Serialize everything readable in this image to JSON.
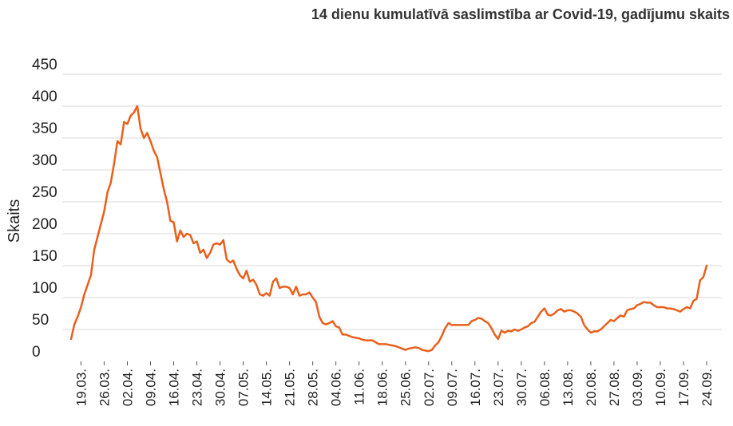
{
  "chart_data": {
    "type": "line",
    "title": "14 dienu kumulatīvā saslimstība ar Covid-19, gadījumu skaits",
    "xlabel": "",
    "ylabel": "Skaits",
    "ylim": [
      0,
      450
    ],
    "yticks": [
      0,
      50,
      100,
      150,
      200,
      250,
      300,
      350,
      400,
      450
    ],
    "grid": true,
    "color": "#e8601c",
    "x_start": "2020-03-16",
    "x_end": "2020-09-24",
    "xticks": [
      {
        "date": "2020-03-19",
        "label": "19.03."
      },
      {
        "date": "2020-03-26",
        "label": "26.03."
      },
      {
        "date": "2020-04-02",
        "label": "02.04."
      },
      {
        "date": "2020-04-09",
        "label": "09.04."
      },
      {
        "date": "2020-04-16",
        "label": "16.04."
      },
      {
        "date": "2020-04-23",
        "label": "23.04."
      },
      {
        "date": "2020-04-30",
        "label": "30.04."
      },
      {
        "date": "2020-05-07",
        "label": "07.05."
      },
      {
        "date": "2020-05-14",
        "label": "14.05."
      },
      {
        "date": "2020-05-21",
        "label": "21.05."
      },
      {
        "date": "2020-05-28",
        "label": "28.05."
      },
      {
        "date": "2020-06-04",
        "label": "04.06."
      },
      {
        "date": "2020-06-11",
        "label": "11.06."
      },
      {
        "date": "2020-06-18",
        "label": "18.06."
      },
      {
        "date": "2020-06-25",
        "label": "25.06."
      },
      {
        "date": "2020-07-02",
        "label": "02.07."
      },
      {
        "date": "2020-07-09",
        "label": "09.07."
      },
      {
        "date": "2020-07-16",
        "label": "16.07."
      },
      {
        "date": "2020-07-23",
        "label": "23.07."
      },
      {
        "date": "2020-07-30",
        "label": "30.07."
      },
      {
        "date": "2020-08-06",
        "label": "06.08."
      },
      {
        "date": "2020-08-13",
        "label": "13.08."
      },
      {
        "date": "2020-08-20",
        "label": "20.08."
      },
      {
        "date": "2020-08-27",
        "label": "27.08."
      },
      {
        "date": "2020-09-03",
        "label": "03.09."
      },
      {
        "date": "2020-09-10",
        "label": "10.09."
      },
      {
        "date": "2020-09-17",
        "label": "17.09."
      },
      {
        "date": "2020-09-24",
        "label": "24.09."
      }
    ],
    "series": [
      {
        "points": [
          [
            "2020-03-16",
            35
          ],
          [
            "2020-03-17",
            58
          ],
          [
            "2020-03-18",
            70
          ],
          [
            "2020-03-19",
            85
          ],
          [
            "2020-03-20",
            105
          ],
          [
            "2020-03-21",
            120
          ],
          [
            "2020-03-22",
            135
          ],
          [
            "2020-03-23",
            175
          ],
          [
            "2020-03-24",
            195
          ],
          [
            "2020-03-25",
            215
          ],
          [
            "2020-03-26",
            235
          ],
          [
            "2020-03-27",
            265
          ],
          [
            "2020-03-28",
            280
          ],
          [
            "2020-03-29",
            310
          ],
          [
            "2020-03-30",
            345
          ],
          [
            "2020-03-31",
            340
          ],
          [
            "2020-04-01",
            375
          ],
          [
            "2020-04-02",
            372
          ],
          [
            "2020-04-03",
            385
          ],
          [
            "2020-04-04",
            390
          ],
          [
            "2020-04-05",
            400
          ],
          [
            "2020-04-06",
            365
          ],
          [
            "2020-04-07",
            350
          ],
          [
            "2020-04-08",
            358
          ],
          [
            "2020-04-09",
            345
          ],
          [
            "2020-04-10",
            330
          ],
          [
            "2020-04-11",
            320
          ],
          [
            "2020-04-12",
            295
          ],
          [
            "2020-04-13",
            270
          ],
          [
            "2020-04-14",
            250
          ],
          [
            "2020-04-15",
            220
          ],
          [
            "2020-04-16",
            218
          ],
          [
            "2020-04-17",
            188
          ],
          [
            "2020-04-18",
            205
          ],
          [
            "2020-04-19",
            195
          ],
          [
            "2020-04-20",
            200
          ],
          [
            "2020-04-21",
            198
          ],
          [
            "2020-04-22",
            185
          ],
          [
            "2020-04-23",
            188
          ],
          [
            "2020-04-24",
            170
          ],
          [
            "2020-04-25",
            175
          ],
          [
            "2020-04-26",
            162
          ],
          [
            "2020-04-27",
            170
          ],
          [
            "2020-04-28",
            183
          ],
          [
            "2020-04-29",
            185
          ],
          [
            "2020-04-30",
            183
          ],
          [
            "2020-05-01",
            190
          ],
          [
            "2020-05-02",
            160
          ],
          [
            "2020-05-03",
            155
          ],
          [
            "2020-05-04",
            158
          ],
          [
            "2020-05-05",
            145
          ],
          [
            "2020-05-06",
            135
          ],
          [
            "2020-05-07",
            130
          ],
          [
            "2020-05-08",
            142
          ],
          [
            "2020-05-09",
            125
          ],
          [
            "2020-05-10",
            128
          ],
          [
            "2020-05-11",
            120
          ],
          [
            "2020-05-12",
            105
          ],
          [
            "2020-05-13",
            103
          ],
          [
            "2020-05-14",
            107
          ],
          [
            "2020-05-15",
            103
          ],
          [
            "2020-05-16",
            125
          ],
          [
            "2020-05-17",
            130
          ],
          [
            "2020-05-18",
            115
          ],
          [
            "2020-05-19",
            117
          ],
          [
            "2020-05-20",
            117
          ],
          [
            "2020-05-21",
            115
          ],
          [
            "2020-05-22",
            105
          ],
          [
            "2020-05-23",
            117
          ],
          [
            "2020-05-24",
            103
          ],
          [
            "2020-05-25",
            105
          ],
          [
            "2020-05-26",
            105
          ],
          [
            "2020-05-27",
            108
          ],
          [
            "2020-05-28",
            100
          ],
          [
            "2020-05-29",
            93
          ],
          [
            "2020-05-30",
            70
          ],
          [
            "2020-05-31",
            60
          ],
          [
            "2020-06-01",
            58
          ],
          [
            "2020-06-02",
            60
          ],
          [
            "2020-06-03",
            63
          ],
          [
            "2020-06-04",
            55
          ],
          [
            "2020-06-05",
            53
          ],
          [
            "2020-06-06",
            42
          ],
          [
            "2020-06-07",
            42
          ],
          [
            "2020-06-08",
            40
          ],
          [
            "2020-06-09",
            38
          ],
          [
            "2020-06-10",
            37
          ],
          [
            "2020-06-11",
            36
          ],
          [
            "2020-06-12",
            34
          ],
          [
            "2020-06-13",
            33
          ],
          [
            "2020-06-14",
            33
          ],
          [
            "2020-06-15",
            33
          ],
          [
            "2020-06-16",
            30
          ],
          [
            "2020-06-17",
            27
          ],
          [
            "2020-06-18",
            27
          ],
          [
            "2020-06-19",
            27
          ],
          [
            "2020-06-20",
            26
          ],
          [
            "2020-06-21",
            25
          ],
          [
            "2020-06-22",
            24
          ],
          [
            "2020-06-23",
            22
          ],
          [
            "2020-06-24",
            20
          ],
          [
            "2020-06-25",
            18
          ],
          [
            "2020-06-26",
            20
          ],
          [
            "2020-06-27",
            21
          ],
          [
            "2020-06-28",
            22
          ],
          [
            "2020-06-29",
            21
          ],
          [
            "2020-06-30",
            18
          ],
          [
            "2020-07-01",
            17
          ],
          [
            "2020-07-02",
            16
          ],
          [
            "2020-07-03",
            18
          ],
          [
            "2020-07-04",
            25
          ],
          [
            "2020-07-05",
            30
          ],
          [
            "2020-07-06",
            40
          ],
          [
            "2020-07-07",
            52
          ],
          [
            "2020-07-08",
            60
          ],
          [
            "2020-07-09",
            57
          ],
          [
            "2020-07-10",
            57
          ],
          [
            "2020-07-11",
            57
          ],
          [
            "2020-07-12",
            57
          ],
          [
            "2020-07-13",
            57
          ],
          [
            "2020-07-14",
            57
          ],
          [
            "2020-07-15",
            63
          ],
          [
            "2020-07-16",
            65
          ],
          [
            "2020-07-17",
            68
          ],
          [
            "2020-07-18",
            67
          ],
          [
            "2020-07-19",
            63
          ],
          [
            "2020-07-20",
            60
          ],
          [
            "2020-07-21",
            52
          ],
          [
            "2020-07-22",
            42
          ],
          [
            "2020-07-23",
            35
          ],
          [
            "2020-07-24",
            48
          ],
          [
            "2020-07-25",
            45
          ],
          [
            "2020-07-26",
            48
          ],
          [
            "2020-07-27",
            47
          ],
          [
            "2020-07-28",
            50
          ],
          [
            "2020-07-29",
            48
          ],
          [
            "2020-07-30",
            50
          ],
          [
            "2020-07-31",
            53
          ],
          [
            "2020-08-01",
            55
          ],
          [
            "2020-08-02",
            60
          ],
          [
            "2020-08-03",
            62
          ],
          [
            "2020-08-04",
            70
          ],
          [
            "2020-08-05",
            78
          ],
          [
            "2020-08-06",
            83
          ],
          [
            "2020-08-07",
            73
          ],
          [
            "2020-08-08",
            72
          ],
          [
            "2020-08-09",
            75
          ],
          [
            "2020-08-10",
            80
          ],
          [
            "2020-08-11",
            82
          ],
          [
            "2020-08-12",
            78
          ],
          [
            "2020-08-13",
            80
          ],
          [
            "2020-08-14",
            80
          ],
          [
            "2020-08-15",
            78
          ],
          [
            "2020-08-16",
            75
          ],
          [
            "2020-08-17",
            70
          ],
          [
            "2020-08-18",
            57
          ],
          [
            "2020-08-19",
            50
          ],
          [
            "2020-08-20",
            45
          ],
          [
            "2020-08-21",
            47
          ],
          [
            "2020-08-22",
            47
          ],
          [
            "2020-08-23",
            50
          ],
          [
            "2020-08-24",
            55
          ],
          [
            "2020-08-25",
            60
          ],
          [
            "2020-08-26",
            65
          ],
          [
            "2020-08-27",
            63
          ],
          [
            "2020-08-28",
            68
          ],
          [
            "2020-08-29",
            72
          ],
          [
            "2020-08-30",
            70
          ],
          [
            "2020-08-31",
            80
          ],
          [
            "2020-09-01",
            82
          ],
          [
            "2020-09-02",
            83
          ],
          [
            "2020-09-03",
            88
          ],
          [
            "2020-09-04",
            90
          ],
          [
            "2020-09-05",
            93
          ],
          [
            "2020-09-06",
            92
          ],
          [
            "2020-09-07",
            92
          ],
          [
            "2020-09-08",
            88
          ],
          [
            "2020-09-09",
            85
          ],
          [
            "2020-09-10",
            85
          ],
          [
            "2020-09-11",
            85
          ],
          [
            "2020-09-12",
            83
          ],
          [
            "2020-09-13",
            83
          ],
          [
            "2020-09-14",
            82
          ],
          [
            "2020-09-15",
            80
          ],
          [
            "2020-09-16",
            78
          ],
          [
            "2020-09-17",
            82
          ],
          [
            "2020-09-18",
            85
          ],
          [
            "2020-09-19",
            83
          ],
          [
            "2020-09-20",
            95
          ],
          [
            "2020-09-21",
            98
          ],
          [
            "2020-09-22",
            127
          ],
          [
            "2020-09-23",
            132
          ],
          [
            "2020-09-24",
            150
          ]
        ]
      }
    ]
  }
}
